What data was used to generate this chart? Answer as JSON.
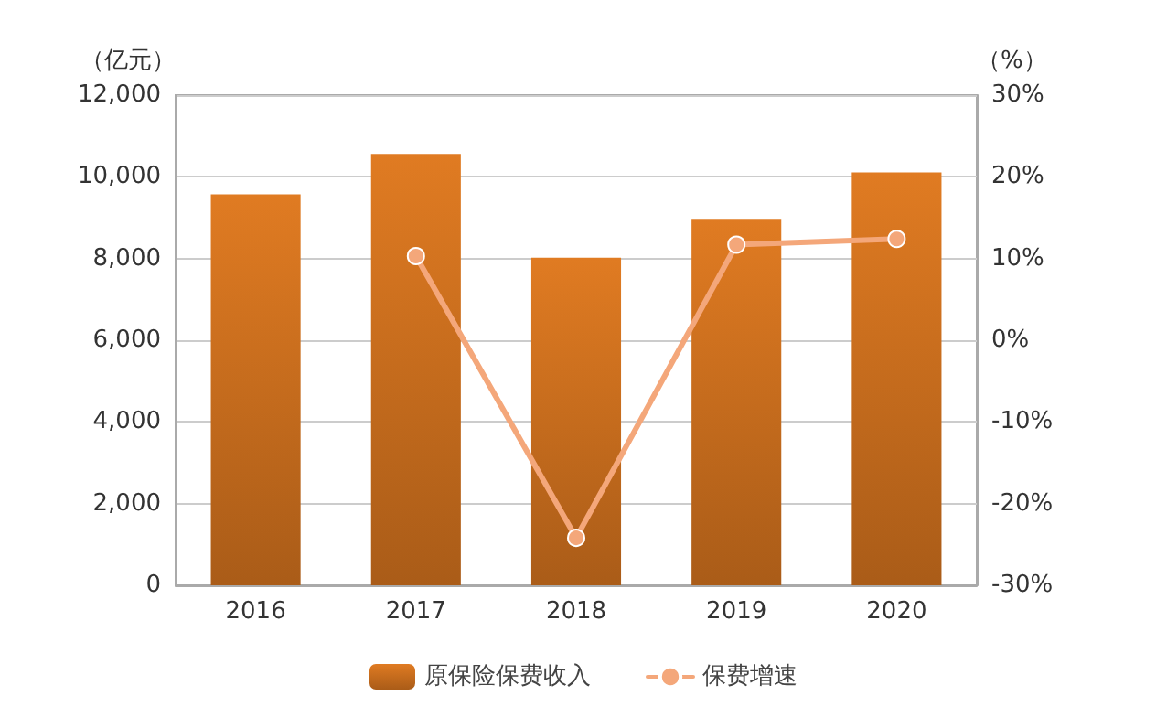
{
  "chart_data": {
    "type": "bar",
    "ylabel": "（亿元）",
    "y2label": "（%）",
    "categories": [
      "2016",
      "2017",
      "2018",
      "2019",
      "2020"
    ],
    "series": [
      {
        "name": "原保险保费收入",
        "color": "#e07b22",
        "values": [
          9570,
          10560,
          8020,
          8950,
          10110
        ]
      },
      {
        "name": "保费增速",
        "type": "line",
        "axis": "y2",
        "color": "#f4a77a",
        "values": [
          null,
          10.3,
          -24.2,
          11.7,
          12.4
        ]
      }
    ],
    "ylim": [
      0,
      12000
    ],
    "yticks": [
      {
        "value": 0,
        "label": "0"
      },
      {
        "value": 2000,
        "label": "2,000"
      },
      {
        "value": 4000,
        "label": "4,000"
      },
      {
        "value": 6000,
        "label": "6,000"
      },
      {
        "value": 8000,
        "label": "8,000"
      },
      {
        "value": 10000,
        "label": "10,000"
      },
      {
        "value": 12000,
        "label": "12,000"
      }
    ],
    "y2lim": [
      -30,
      30
    ],
    "y2ticks": [
      {
        "value": -30,
        "label": "-30%"
      },
      {
        "value": -20,
        "label": "-20%"
      },
      {
        "value": -10,
        "label": "-10%"
      },
      {
        "value": 0,
        "label": "0%"
      },
      {
        "value": 10,
        "label": "10%"
      },
      {
        "value": 20,
        "label": "20%"
      },
      {
        "value": 30,
        "label": "30%"
      }
    ],
    "grid": "y",
    "legend": "bottom",
    "marker": "circle",
    "line_style": "solid"
  }
}
